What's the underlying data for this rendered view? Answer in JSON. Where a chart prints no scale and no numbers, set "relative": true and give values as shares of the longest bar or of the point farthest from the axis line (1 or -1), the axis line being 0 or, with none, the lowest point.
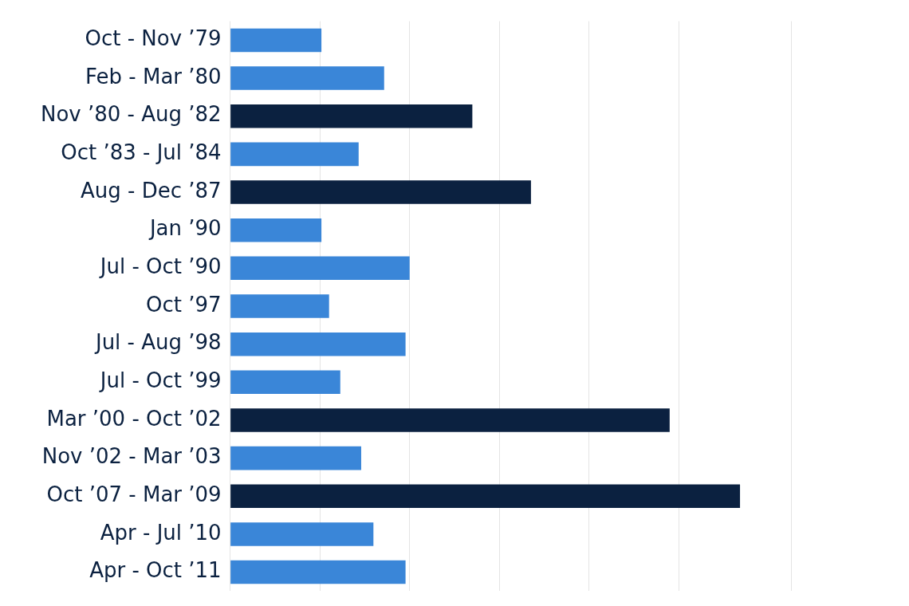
{
  "chart_data": {
    "type": "bar",
    "orientation": "horizontal",
    "relative": true,
    "grid": "x",
    "legend": false,
    "categories": [
      "Oct - Nov ’79",
      "Feb - Mar ’80",
      "Nov ’80 - Aug ’82",
      "Oct ’83 - Jul ’84",
      "Aug - Dec ’87",
      "Jan ’90",
      "Jul - Oct ’90",
      "Oct ’97",
      "Jul - Aug ’98",
      "Jul - Oct ’99",
      "Mar ’00 - Oct ’02",
      "Nov ’02 - Mar ’03",
      "Oct ’07 - Mar ’09",
      "Apr - Jul ’10",
      "Apr - Oct ’11"
    ],
    "values": [
      0.179,
      0.302,
      0.475,
      0.252,
      0.59,
      0.179,
      0.352,
      0.194,
      0.344,
      0.216,
      0.862,
      0.257,
      1,
      0.281,
      0.344
    ],
    "colors": [
      "#3a86d8",
      "#3a86d8",
      "#0b2140",
      "#3a86d8",
      "#0b2140",
      "#3a86d8",
      "#3a86d8",
      "#3a86d8",
      "#3a86d8",
      "#3a86d8",
      "#0b2140",
      "#3a86d8",
      "#0b2140",
      "#3a86d8",
      "#3a86d8"
    ]
  }
}
